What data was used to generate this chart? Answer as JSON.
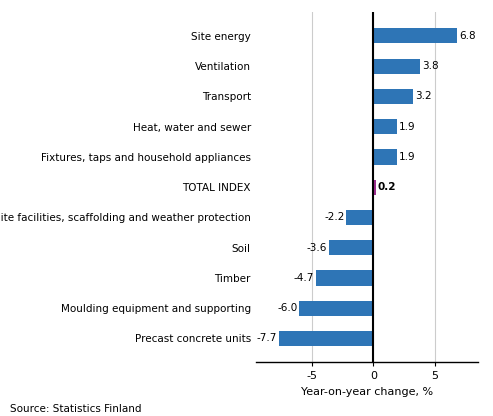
{
  "categories": [
    "Precast concrete units",
    "Moulding equipment and supporting",
    "Timber",
    "Soil",
    "Site facilities, scaffolding and weather protection",
    "TOTAL INDEX",
    "Fixtures, taps and household appliances",
    "Heat, water and sewer",
    "Transport",
    "Ventilation",
    "Site energy"
  ],
  "values": [
    -7.7,
    -6.0,
    -4.7,
    -3.6,
    -2.2,
    0.2,
    1.9,
    1.9,
    3.2,
    3.8,
    6.8
  ],
  "bar_colors": [
    "#2E75B6",
    "#2E75B6",
    "#2E75B6",
    "#2E75B6",
    "#2E75B6",
    "#9B2D8E",
    "#2E75B6",
    "#2E75B6",
    "#2E75B6",
    "#2E75B6",
    "#2E75B6"
  ],
  "xlabel": "Year-on-year change, %",
  "xlim": [
    -9.5,
    8.5
  ],
  "xticks": [
    -5,
    0,
    5
  ],
  "source": "Source: Statistics Finland",
  "value_label_bold_index": 5,
  "background_color": "#FFFFFF",
  "grid_color": "#CCCCCC",
  "bar_height": 0.5,
  "label_fontsize": 7.5,
  "value_fontsize": 7.5
}
